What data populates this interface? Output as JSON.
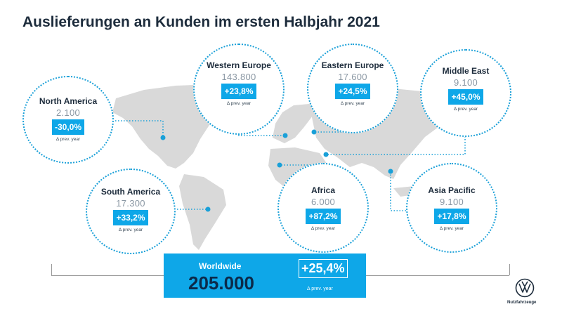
{
  "title": "Auslieferungen an Kunden im ersten Halbjahr 2021",
  "regions": [
    {
      "name": "North America",
      "value": "2.100",
      "change": "-30,0%",
      "note": "Δ prev. year"
    },
    {
      "name": "Western Europe",
      "value": "143.800",
      "change": "+23,8%",
      "note": "Δ prev. year"
    },
    {
      "name": "Eastern Europe",
      "value": "17.600",
      "change": "+24,5%",
      "note": "Δ prev. year"
    },
    {
      "name": "Middle East",
      "value": "9.100",
      "change": "+45,0%",
      "note": "Δ prev. year"
    },
    {
      "name": "South America",
      "value": "17.300",
      "change": "+33,2%",
      "note": "Δ prev. year"
    },
    {
      "name": "Africa",
      "value": "6.000",
      "change": "+87,2%",
      "note": "Δ prev. year"
    },
    {
      "name": "Asia Pacific",
      "value": "9.100",
      "change": "+17,8%",
      "note": "Δ prev. year"
    }
  ],
  "worldwide": {
    "label": "Worldwide",
    "total": "205.000",
    "change": "+25,4%",
    "note": "Δ prev. year"
  },
  "brand": {
    "name": "Nutzfahrzeuge",
    "logo_icon": "vw-logo-icon"
  },
  "colors": {
    "accent": "#0ea7e8",
    "title": "#1d2c3c",
    "map": "#d9d9d9",
    "total": "#0b2a4a"
  }
}
